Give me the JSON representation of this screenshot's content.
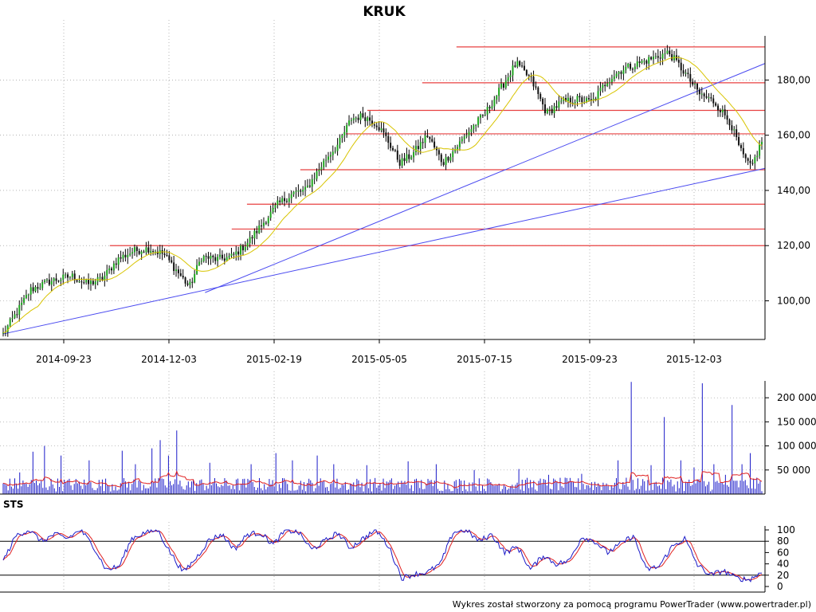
{
  "chart_data": [
    {
      "type": "candlestick",
      "title": "KRUK",
      "x_tick_labels": [
        "2014-09-23",
        "2014-12-03",
        "2015-02-19",
        "2015-05-05",
        "2015-07-15",
        "2015-09-23",
        "2015-12-03"
      ],
      "y_tick_labels": [
        "100,00",
        "120,00",
        "140,00",
        "160,00",
        "180,00"
      ],
      "y_ticks": [
        100,
        120,
        140,
        160,
        180
      ],
      "ylim": [
        86,
        196
      ],
      "n_bars": 330,
      "close_anchors": [
        [
          0,
          88
        ],
        [
          8,
          95
        ],
        [
          18,
          104
        ],
        [
          30,
          107
        ],
        [
          45,
          109
        ],
        [
          55,
          106
        ],
        [
          65,
          108
        ],
        [
          75,
          115
        ],
        [
          85,
          118
        ],
        [
          95,
          119
        ],
        [
          105,
          117
        ],
        [
          115,
          110
        ],
        [
          122,
          105
        ],
        [
          130,
          116
        ],
        [
          140,
          115
        ],
        [
          150,
          116
        ],
        [
          160,
          121
        ],
        [
          170,
          128
        ],
        [
          180,
          135
        ],
        [
          190,
          139
        ],
        [
          198,
          140
        ],
        [
          205,
          146
        ],
        [
          212,
          152
        ],
        [
          220,
          157
        ],
        [
          228,
          166
        ],
        [
          236,
          167
        ],
        [
          245,
          164
        ],
        [
          252,
          158
        ],
        [
          260,
          150
        ],
        [
          268,
          153
        ],
        [
          278,
          160
        ],
        [
          288,
          150
        ],
        [
          296,
          155
        ],
        [
          306,
          162
        ],
        [
          316,
          168
        ],
        [
          326,
          177
        ],
        [
          336,
          186
        ],
        [
          346,
          180
        ],
        [
          356,
          168
        ],
        [
          366,
          172
        ],
        [
          376,
          173
        ],
        [
          386,
          172
        ],
        [
          396,
          180
        ],
        [
          406,
          184
        ],
        [
          416,
          186
        ],
        [
          426,
          188
        ],
        [
          436,
          190
        ],
        [
          446,
          183
        ],
        [
          456,
          175
        ],
        [
          466,
          172
        ],
        [
          476,
          165
        ],
        [
          484,
          153
        ],
        [
          490,
          148
        ],
        [
          497,
          158
        ]
      ],
      "moving_average": {
        "color": "#d8c400"
      },
      "horizontal_levels": [
        {
          "value": 192,
          "x_from": 0.595,
          "color": "#e84040"
        },
        {
          "value": 179,
          "x_from": 0.55,
          "color": "#e84040"
        },
        {
          "value": 169,
          "x_from": 0.478,
          "color": "#e84040"
        },
        {
          "value": 160.5,
          "x_from": 0.45,
          "color": "#e84040"
        },
        {
          "value": 147.5,
          "x_from": 0.39,
          "color": "#e84040"
        },
        {
          "value": 135,
          "x_from": 0.32,
          "color": "#e84040"
        },
        {
          "value": 126,
          "x_from": 0.3,
          "color": "#e84040"
        },
        {
          "value": 120,
          "x_from": 0.14,
          "color": "#e84040"
        }
      ],
      "trend_lines": [
        {
          "from": [
            0,
            88
          ],
          "to": [
            1.0,
            148
          ],
          "color": "#4a4af0"
        },
        {
          "from": [
            0.265,
            103
          ],
          "to": [
            1.0,
            186
          ],
          "color": "#4a4af0"
        }
      ],
      "grid": true
    },
    {
      "type": "bar",
      "name": "volume",
      "y_tick_labels": [
        "50 000",
        "100 000",
        "150 000",
        "200 000"
      ],
      "y_ticks": [
        50000,
        100000,
        150000,
        200000
      ],
      "ylim": [
        0,
        235000
      ],
      "bar_color": "#1a1ac8",
      "average_color": "#e02020",
      "spikes": [
        [
          10,
          45000
        ],
        [
          18,
          88000
        ],
        [
          25,
          100000
        ],
        [
          35,
          80000
        ],
        [
          52,
          70000
        ],
        [
          72,
          90000
        ],
        [
          80,
          62000
        ],
        [
          90,
          95000
        ],
        [
          95,
          112000
        ],
        [
          100,
          80000
        ],
        [
          105,
          132000
        ],
        [
          125,
          65000
        ],
        [
          150,
          62000
        ],
        [
          165,
          85000
        ],
        [
          175,
          70000
        ],
        [
          190,
          80000
        ],
        [
          200,
          62000
        ],
        [
          220,
          60000
        ],
        [
          245,
          68000
        ],
        [
          262,
          62000
        ],
        [
          285,
          50000
        ],
        [
          312,
          52000
        ],
        [
          330,
          40000
        ],
        [
          350,
          42000
        ],
        [
          372,
          70000
        ],
        [
          380,
          233000
        ],
        [
          392,
          60000
        ],
        [
          400,
          160000
        ],
        [
          410,
          70000
        ],
        [
          418,
          55000
        ],
        [
          423,
          230000
        ],
        [
          430,
          62000
        ],
        [
          437,
          40000
        ],
        [
          441,
          185000
        ],
        [
          447,
          62000
        ],
        [
          452,
          85000
        ]
      ],
      "base_level": 18000
    },
    {
      "type": "line",
      "name": "STS",
      "label": "STS",
      "y_tick_labels": [
        "0",
        "20",
        "40",
        "60",
        "80",
        "100"
      ],
      "y_ticks": [
        0,
        20,
        40,
        60,
        80,
        100
      ],
      "ylim": [
        0,
        100
      ],
      "reference_levels": [
        20,
        80
      ],
      "fast_color": "#1a1ac8",
      "slow_color": "#e02020",
      "anchors": [
        [
          0,
          45
        ],
        [
          8,
          90
        ],
        [
          16,
          100
        ],
        [
          24,
          80
        ],
        [
          32,
          92
        ],
        [
          40,
          85
        ],
        [
          48,
          100
        ],
        [
          56,
          72
        ],
        [
          64,
          30
        ],
        [
          72,
          35
        ],
        [
          80,
          85
        ],
        [
          88,
          95
        ],
        [
          96,
          100
        ],
        [
          104,
          60
        ],
        [
          112,
          25
        ],
        [
          120,
          50
        ],
        [
          128,
          82
        ],
        [
          136,
          92
        ],
        [
          144,
          66
        ],
        [
          152,
          92
        ],
        [
          160,
          95
        ],
        [
          168,
          74
        ],
        [
          176,
          100
        ],
        [
          184,
          95
        ],
        [
          192,
          65
        ],
        [
          200,
          80
        ],
        [
          208,
          95
        ],
        [
          216,
          68
        ],
        [
          224,
          85
        ],
        [
          232,
          100
        ],
        [
          240,
          70
        ],
        [
          248,
          15
        ],
        [
          256,
          22
        ],
        [
          264,
          25
        ],
        [
          272,
          40
        ],
        [
          280,
          96
        ],
        [
          288,
          100
        ],
        [
          296,
          80
        ],
        [
          304,
          92
        ],
        [
          312,
          60
        ],
        [
          320,
          70
        ],
        [
          328,
          30
        ],
        [
          336,
          55
        ],
        [
          344,
          40
        ],
        [
          352,
          45
        ],
        [
          360,
          88
        ],
        [
          368,
          80
        ],
        [
          376,
          60
        ],
        [
          384,
          75
        ],
        [
          392,
          90
        ],
        [
          400,
          30
        ],
        [
          408,
          35
        ],
        [
          416,
          70
        ],
        [
          424,
          85
        ],
        [
          432,
          38
        ],
        [
          440,
          20
        ],
        [
          448,
          28
        ],
        [
          456,
          15
        ],
        [
          464,
          12
        ],
        [
          472,
          25
        ]
      ]
    }
  ],
  "footer": {
    "credit": "Wykres został stworzony za pomocą programu PowerTrader (www.powertrader.pl)"
  }
}
